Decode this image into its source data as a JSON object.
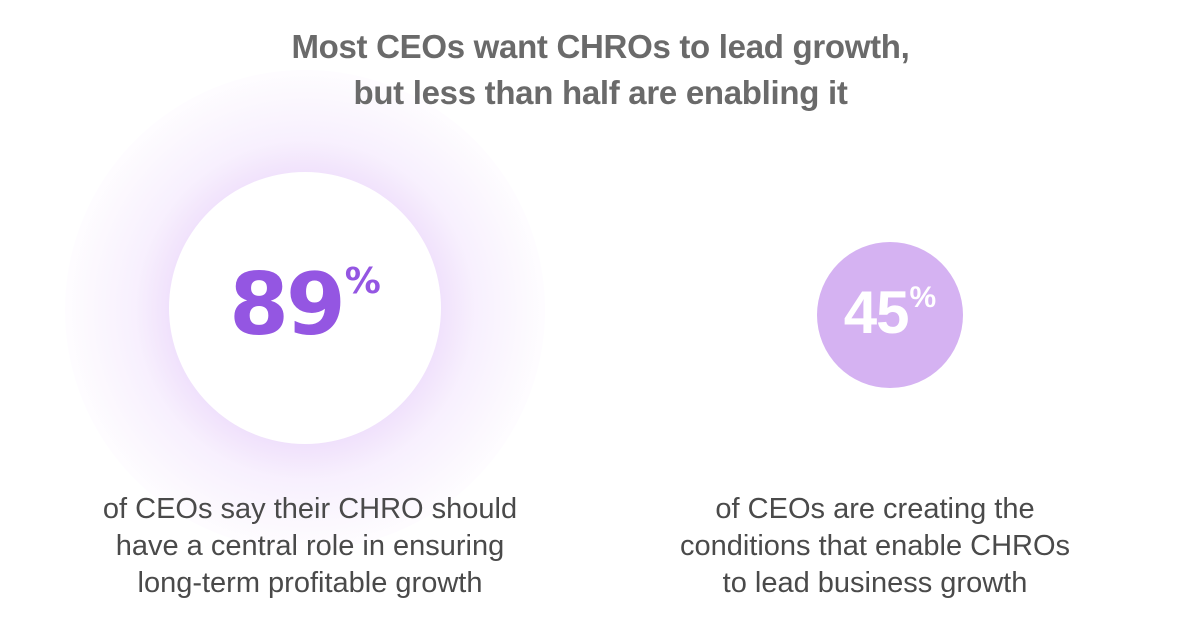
{
  "headline": {
    "line1": "Most CEOs want CHROs to lead growth,",
    "line2": "but less than half are enabling it"
  },
  "stats": [
    {
      "value": "89",
      "unit": "%",
      "number_color": "#9456e2",
      "circle_color": "#ffffff",
      "glow_color": "#c996f0",
      "caption": [
        "of CEOs say their CHRO should",
        "have a central role in ensuring",
        "long-term profitable growth"
      ]
    },
    {
      "value": "45",
      "unit": "%",
      "number_color": "#ffffff",
      "circle_color": "#d5b2f2",
      "caption": [
        "of CEOs are creating the",
        "conditions that enable CHROs",
        "to lead business growth"
      ]
    }
  ],
  "colors": {
    "headline": "#6a6a6a",
    "caption": "#4a4a4a",
    "background": "#ffffff"
  }
}
